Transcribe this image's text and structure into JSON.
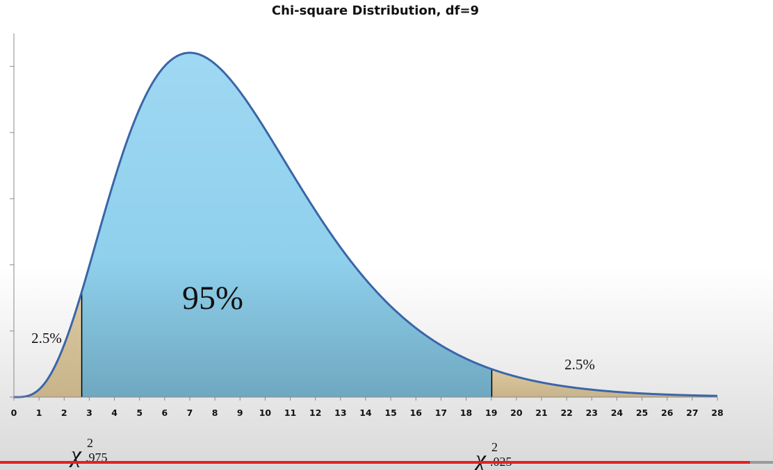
{
  "chart_data": {
    "type": "area",
    "title": "Chi-square Distribution, df=9",
    "df": 9,
    "xlim": [
      0,
      28
    ],
    "x_ticks": [
      "0",
      "1",
      "2",
      "3",
      "4",
      "5",
      "6",
      "7",
      "8",
      "9",
      "10",
      "11",
      "12",
      "13",
      "14",
      "15",
      "16",
      "17",
      "18",
      "19",
      "20",
      "21",
      "22",
      "23",
      "24",
      "25",
      "26",
      "27",
      "28"
    ],
    "ylim": [
      0,
      0.11
    ],
    "y_tick_labels_shown": false,
    "grid": false,
    "legend": "none",
    "regions": [
      {
        "from": 0,
        "to": 2.7,
        "label": "2.5%",
        "color": "#d8c49a"
      },
      {
        "from": 2.7,
        "to": 19.02,
        "label": "95%",
        "color": "#8ccfe8"
      },
      {
        "from": 19.02,
        "to": 28,
        "label": "2.5%",
        "color": "#d8c49a"
      }
    ],
    "critical_values": [
      {
        "x": 2.7,
        "symbol": "χ",
        "superscript": "2",
        "subscript": ".975"
      },
      {
        "x": 19.02,
        "symbol": "χ",
        "superscript": "2",
        "subscript": ".025"
      }
    ],
    "curve_color": "#3a65a8"
  },
  "player": {
    "progress": 0.97
  }
}
